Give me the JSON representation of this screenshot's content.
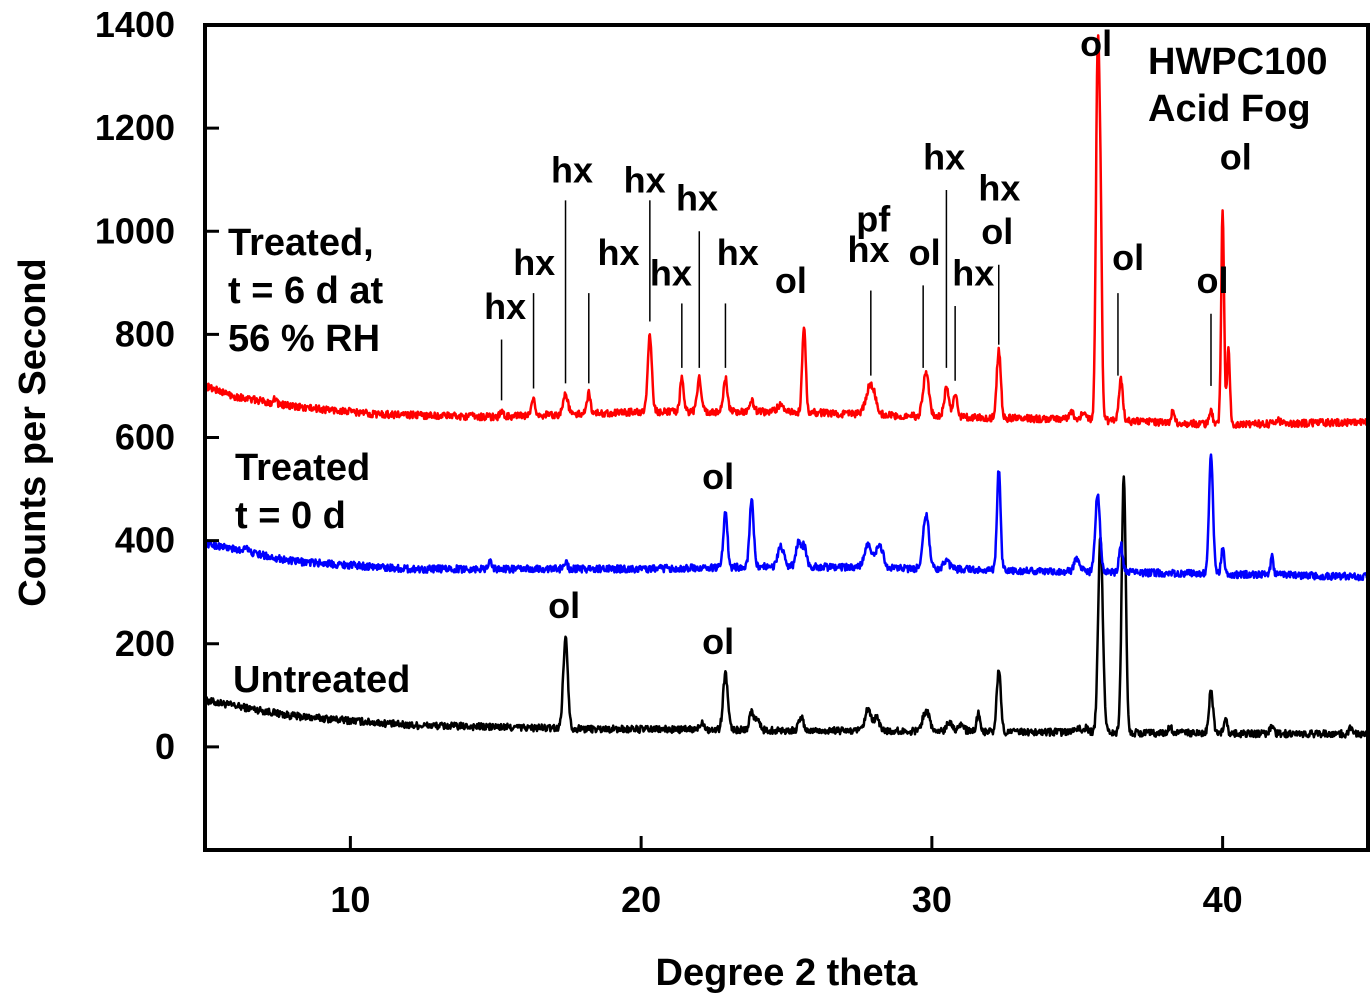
{
  "chart_data": {
    "type": "line",
    "title": "",
    "xlabel": "Degree 2 theta",
    "ylabel": "Counts per Second",
    "xlim": [
      5,
      45
    ],
    "ylim": [
      -200,
      1400
    ],
    "xticks": [
      10,
      20,
      30,
      40
    ],
    "xtick_labels": [
      "10",
      "20",
      "30",
      "40"
    ],
    "yticks": [
      0,
      200,
      400,
      600,
      800,
      1000,
      1200,
      1400
    ],
    "ytick_labels": [
      "0",
      "200",
      "400",
      "600",
      "800",
      "1000",
      "1200",
      "1400"
    ],
    "grid": false,
    "corner_label": [
      "HWPC100",
      "Acid Fog"
    ],
    "series": [
      {
        "name": "Untreated",
        "label_lines": [
          "Untreated"
        ],
        "color": "#000000",
        "baseline": [
          [
            5,
            90
          ],
          [
            8,
            60
          ],
          [
            12,
            42
          ],
          [
            18,
            35
          ],
          [
            25,
            32
          ],
          [
            30,
            30
          ],
          [
            35,
            28
          ],
          [
            40,
            26
          ],
          [
            45,
            25
          ]
        ],
        "peaks": [
          [
            17.4,
            175,
            0.08
          ],
          [
            22.1,
            15,
            0.08
          ],
          [
            22.9,
            110,
            0.08
          ],
          [
            23.8,
            35,
            0.08
          ],
          [
            24.0,
            20,
            0.08
          ],
          [
            25.5,
            25,
            0.08
          ],
          [
            27.8,
            40,
            0.1
          ],
          [
            28.1,
            25,
            0.1
          ],
          [
            29.8,
            40,
            0.12
          ],
          [
            30.6,
            20,
            0.1
          ],
          [
            31.0,
            15,
            0.1
          ],
          [
            31.6,
            35,
            0.06
          ],
          [
            32.3,
            120,
            0.07
          ],
          [
            35.0,
            10,
            0.08
          ],
          [
            35.3,
            10,
            0.08
          ],
          [
            35.8,
            380,
            0.08
          ],
          [
            36.6,
            500,
            0.07
          ],
          [
            38.2,
            10,
            0.08
          ],
          [
            39.6,
            85,
            0.07
          ],
          [
            40.1,
            25,
            0.06
          ],
          [
            41.7,
            15,
            0.06
          ],
          [
            44.4,
            10,
            0.06
          ]
        ]
      },
      {
        "name": "Treated t = 0 d",
        "label_lines": [
          "Treated",
          "t = 0 d"
        ],
        "color": "#0000ff",
        "baseline": [
          [
            5,
            395
          ],
          [
            8,
            360
          ],
          [
            12,
            345
          ],
          [
            20,
            345
          ],
          [
            25,
            350
          ],
          [
            30,
            345
          ],
          [
            35,
            340
          ],
          [
            40,
            335
          ],
          [
            45,
            330
          ]
        ],
        "peaks": [
          [
            6.4,
            12,
            0.06
          ],
          [
            14.8,
            18,
            0.06
          ],
          [
            17.4,
            15,
            0.06
          ],
          [
            22.9,
            105,
            0.07
          ],
          [
            23.8,
            130,
            0.07
          ],
          [
            24.8,
            40,
            0.1
          ],
          [
            25.4,
            45,
            0.08
          ],
          [
            25.6,
            40,
            0.08
          ],
          [
            27.8,
            45,
            0.12
          ],
          [
            28.2,
            45,
            0.12
          ],
          [
            29.8,
            105,
            0.1
          ],
          [
            30.5,
            15,
            0.1
          ],
          [
            32.3,
            195,
            0.06
          ],
          [
            35.0,
            25,
            0.1
          ],
          [
            35.7,
            150,
            0.08
          ],
          [
            36.5,
            55,
            0.06
          ],
          [
            39.6,
            225,
            0.07
          ],
          [
            40.0,
            55,
            0.05
          ],
          [
            41.7,
            35,
            0.05
          ]
        ]
      },
      {
        "name": "Treated, t = 6 d at 56 % RH",
        "label_lines": [
          "Treated,",
          "t = 6 d at",
          "56 % RH"
        ],
        "color": "#ff0000",
        "baseline": [
          [
            5,
            700
          ],
          [
            6,
            680
          ],
          [
            8,
            660
          ],
          [
            11,
            645
          ],
          [
            15,
            640
          ],
          [
            20,
            650
          ],
          [
            25,
            650
          ],
          [
            30,
            640
          ],
          [
            35,
            635
          ],
          [
            40,
            625
          ],
          [
            45,
            630
          ]
        ],
        "peaks": [
          [
            7.4,
            10,
            0.06
          ],
          [
            15.2,
            8,
            0.06
          ],
          [
            16.3,
            30,
            0.06
          ],
          [
            17.4,
            40,
            0.08
          ],
          [
            18.2,
            40,
            0.06
          ],
          [
            20.3,
            150,
            0.07
          ],
          [
            21.4,
            65,
            0.06
          ],
          [
            22.0,
            65,
            0.07
          ],
          [
            22.9,
            65,
            0.07
          ],
          [
            23.8,
            20,
            0.08
          ],
          [
            24.8,
            15,
            0.1
          ],
          [
            25.6,
            170,
            0.06
          ],
          [
            27.9,
            60,
            0.15
          ],
          [
            29.8,
            85,
            0.1
          ],
          [
            30.5,
            55,
            0.08
          ],
          [
            30.8,
            40,
            0.08
          ],
          [
            32.3,
            130,
            0.07
          ],
          [
            34.8,
            15,
            0.08
          ],
          [
            35.2,
            15,
            0.08
          ],
          [
            35.7,
            680,
            0.06
          ],
          [
            35.8,
            350,
            0.05
          ],
          [
            36.5,
            80,
            0.07
          ],
          [
            38.3,
            25,
            0.05
          ],
          [
            39.6,
            25,
            0.06
          ],
          [
            40.0,
            410,
            0.05
          ],
          [
            40.2,
            150,
            0.05
          ],
          [
            41.9,
            10,
            0.06
          ]
        ]
      }
    ],
    "annotations": [
      {
        "text": "hx",
        "x": 15.2,
        "text_x": 14.6,
        "text_y": 830,
        "line_top": 790,
        "line_bottom": 672
      },
      {
        "text": "hx",
        "x": 16.3,
        "text_x": 15.6,
        "text_y": 915,
        "line_top": 880,
        "line_bottom": 695
      },
      {
        "text": "hx",
        "x": 17.4,
        "text_x": 16.9,
        "text_y": 1095,
        "line_top": 1060,
        "line_bottom": 705
      },
      {
        "text": "hx",
        "x": 18.2,
        "text_x": 18.5,
        "text_y": 935,
        "line_top": 880,
        "line_bottom": 705
      },
      {
        "text": "hx",
        "x": 20.3,
        "text_x": 19.4,
        "text_y": 1075,
        "line_top": 1060,
        "line_bottom": 825
      },
      {
        "text": "hx",
        "x": 21.4,
        "text_x": 20.3,
        "text_y": 895,
        "line_top": 860,
        "line_bottom": 735
      },
      {
        "text": "hx",
        "x": 22.0,
        "text_x": 21.2,
        "text_y": 1040,
        "line_top": 1000,
        "line_bottom": 735
      },
      {
        "text": "hx",
        "x": 22.9,
        "text_x": 22.6,
        "text_y": 935,
        "line_top": 860,
        "line_bottom": 735
      },
      {
        "text": "ol",
        "x": 25.6,
        "text_x": 24.6,
        "text_y": 880,
        "line_top": null,
        "line_bottom": null
      },
      {
        "text": "pf",
        "x": 27.9,
        "text_x": 27.4,
        "text_y": 1000,
        "line_top": null,
        "line_bottom": null
      },
      {
        "text": "hx",
        "x": 27.9,
        "text_x": 27.1,
        "text_y": 940,
        "line_top": 885,
        "line_bottom": 720
      },
      {
        "text": "ol",
        "x": 29.7,
        "text_x": 29.2,
        "text_y": 935,
        "line_top": 895,
        "line_bottom": 735
      },
      {
        "text": "hx",
        "x": 30.5,
        "text_x": 29.7,
        "text_y": 1120,
        "line_top": 1080,
        "line_bottom": 735
      },
      {
        "text": "hx",
        "x": 30.8,
        "text_x": 30.7,
        "text_y": 895,
        "line_top": 855,
        "line_bottom": 710
      },
      {
        "text": "hx",
        "x": 32.3,
        "text_x": 31.6,
        "text_y": 1060,
        "line_top": null,
        "line_bottom": null
      },
      {
        "text": "ol",
        "x": 32.3,
        "text_x": 31.7,
        "text_y": 975,
        "line_top": 935,
        "line_bottom": 780
      },
      {
        "text": "ol",
        "x": 35.7,
        "text_x": 35.1,
        "text_y": 1340,
        "line_top": null,
        "line_bottom": null
      },
      {
        "text": "ol",
        "x": 36.4,
        "text_x": 36.2,
        "text_y": 925,
        "line_top": 880,
        "line_bottom": 720
      },
      {
        "text": "ol",
        "x": 39.6,
        "text_x": 39.1,
        "text_y": 880,
        "line_top": 840,
        "line_bottom": 700
      },
      {
        "text": "ol",
        "x": 40.0,
        "text_x": 39.9,
        "text_y": 1120,
        "line_top": null,
        "line_bottom": null
      },
      {
        "text": "ol",
        "x": 22.9,
        "text_x": 22.1,
        "text_y": 500,
        "line_top": null,
        "line_bottom": null
      },
      {
        "text": "ol",
        "x": 17.4,
        "text_x": 16.8,
        "text_y": 250,
        "line_top": null,
        "line_bottom": null
      },
      {
        "text": "ol",
        "x": 22.9,
        "text_x": 22.1,
        "text_y": 180,
        "line_top": null,
        "line_bottom": null
      }
    ]
  }
}
